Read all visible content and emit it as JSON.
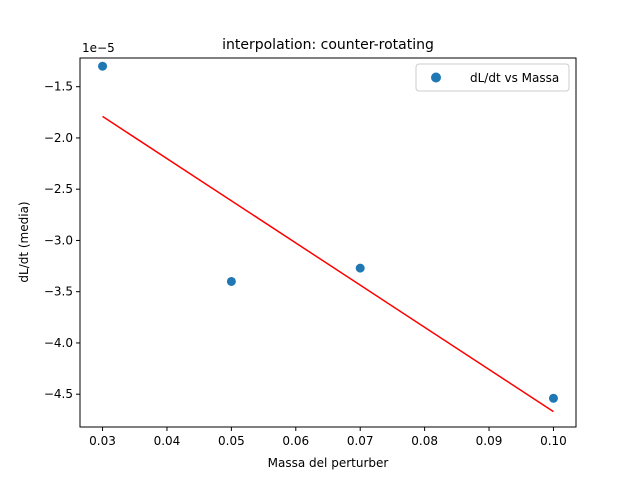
{
  "chart_data": {
    "type": "scatter",
    "title": "interpolation: counter-rotating",
    "xlabel": "Massa del perturber",
    "ylabel": "dL/dt (media)",
    "offset_label": "1e−5",
    "xlim": [
      0.0265,
      0.1035
    ],
    "ylim": [
      -4.82,
      -1.22
    ],
    "y_scale_factor": 1e-05,
    "xticks": [
      0.03,
      0.04,
      0.05,
      0.06,
      0.07,
      0.08,
      0.09,
      0.1
    ],
    "xtick_labels": [
      "0.03",
      "0.04",
      "0.05",
      "0.06",
      "0.07",
      "0.08",
      "0.09",
      "0.10"
    ],
    "yticks": [
      -4.5,
      -4.0,
      -3.5,
      -3.0,
      -2.5,
      -2.0,
      -1.5
    ],
    "ytick_labels": [
      "−4.5",
      "−4.0",
      "−3.5",
      "−3.0",
      "−2.5",
      "−2.0",
      "−1.5"
    ],
    "grid": false,
    "legend_position": "top-right",
    "series": [
      {
        "name": "dL/dt vs Massa",
        "kind": "scatter",
        "color": "#1f77b4",
        "x": [
          0.03,
          0.05,
          0.07,
          0.1
        ],
        "y": [
          -1.3,
          -3.4,
          -3.27,
          -4.54
        ]
      },
      {
        "kind": "line",
        "color": "#ff0000",
        "x": [
          0.03,
          0.1
        ],
        "y": [
          -1.79,
          -4.67
        ]
      }
    ]
  }
}
